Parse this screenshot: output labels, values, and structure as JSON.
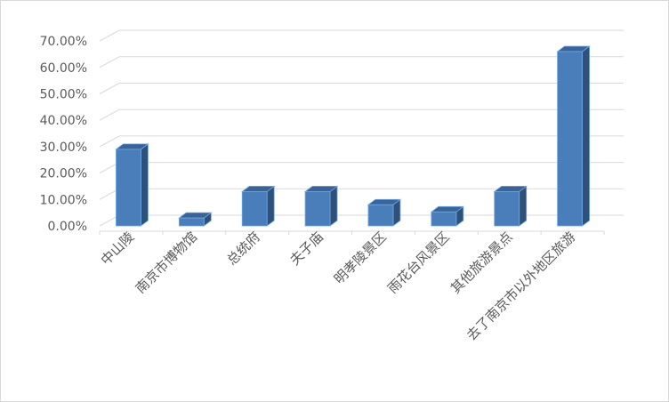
{
  "chart_data": {
    "type": "bar",
    "style": "3d-column",
    "categories": [
      "中山陵",
      "南京市博物馆",
      "总统府",
      "夫子庙",
      "明孝陵景区",
      "雨花台风景区",
      "其他旅游景点",
      "去了南京市以外地区旅游"
    ],
    "values": [
      0.29,
      0.03,
      0.13,
      0.13,
      0.08,
      0.053,
      0.13,
      0.66
    ],
    "ylim": [
      0,
      0.7
    ],
    "yticks": [
      "0.00%",
      "10.00%",
      "20.00%",
      "30.00%",
      "40.00%",
      "50.00%",
      "60.00%",
      "70.00%"
    ],
    "grid": true,
    "colors": {
      "front": "#4a7ebb",
      "side": "#2f5078",
      "top": "#3a6396",
      "edge": "#6fa8e6",
      "grid": "#d9d9d9"
    }
  }
}
